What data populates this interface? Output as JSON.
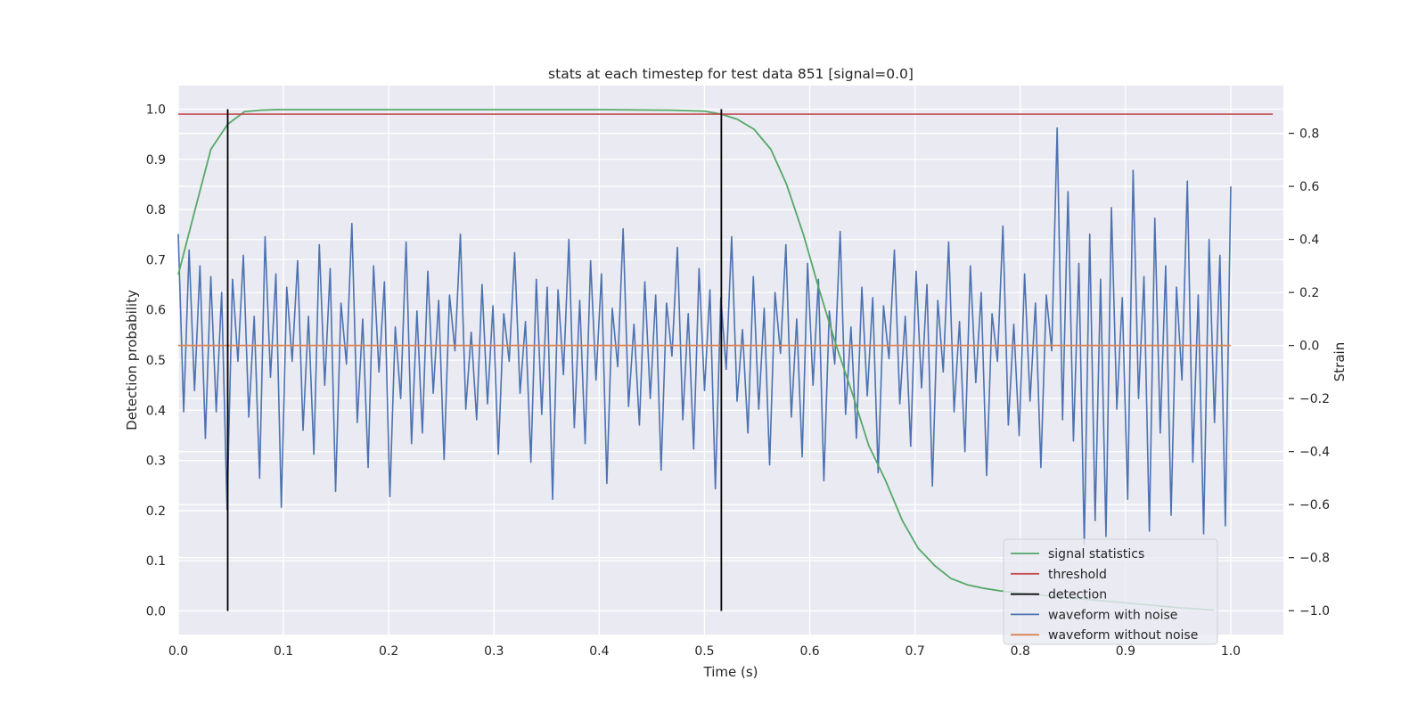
{
  "chart_data": {
    "type": "line",
    "title": "stats at each timestep for test data 851 [signal=0.0]",
    "xlabel": "Time (s)",
    "ylabel": "Detection probability",
    "y2label": "Strain",
    "xlim": [
      0.0,
      1.05
    ],
    "ylim": [
      -0.047,
      1.047
    ],
    "y2lim": [
      -1.09,
      0.98
    ],
    "xticks": [
      "0.0",
      "0.1",
      "0.2",
      "0.3",
      "0.4",
      "0.5",
      "0.6",
      "0.7",
      "0.8",
      "0.9",
      "1.0"
    ],
    "yticks": [
      "0.0",
      "0.1",
      "0.2",
      "0.3",
      "0.4",
      "0.5",
      "0.6",
      "0.7",
      "0.8",
      "0.9",
      "1.0"
    ],
    "y2ticks": [
      "−1.0",
      "−0.8",
      "−0.6",
      "−0.4",
      "−0.2",
      "0.0",
      "0.2",
      "0.4",
      "0.6",
      "0.8"
    ],
    "grid": true,
    "legend_position": "lower-right",
    "series": [
      {
        "name": "signal statistics",
        "color": "#55a868",
        "axis": "left",
        "x": [
          0.0,
          0.016,
          0.031,
          0.047,
          0.063,
          0.078,
          0.094,
          0.109,
          0.125,
          0.2,
          0.3,
          0.4,
          0.469,
          0.5,
          0.516,
          0.531,
          0.547,
          0.563,
          0.578,
          0.594,
          0.609,
          0.625,
          0.641,
          0.656,
          0.672,
          0.688,
          0.703,
          0.719,
          0.734,
          0.75,
          0.766,
          0.781,
          0.797,
          0.813,
          0.828,
          0.844,
          0.859,
          0.875,
          0.891,
          0.906,
          0.922,
          0.938,
          0.953,
          0.969,
          0.984
        ],
        "values": [
          0.67,
          0.8,
          0.92,
          0.97,
          0.995,
          0.998,
          0.999,
          0.999,
          0.999,
          0.999,
          0.999,
          0.999,
          0.998,
          0.996,
          0.99,
          0.98,
          0.96,
          0.92,
          0.85,
          0.75,
          0.64,
          0.53,
          0.43,
          0.33,
          0.26,
          0.18,
          0.125,
          0.09,
          0.065,
          0.052,
          0.045,
          0.04,
          0.036,
          0.033,
          0.03,
          0.027,
          0.024,
          0.021,
          0.018,
          0.015,
          0.012,
          0.009,
          0.006,
          0.004,
          0.002
        ]
      },
      {
        "name": "threshold",
        "color": "#c44e52",
        "axis": "left",
        "x": [
          0.0,
          1.04
        ],
        "values": [
          0.99,
          0.99
        ]
      },
      {
        "name": "detection",
        "color": "#000000",
        "axis": "left",
        "segments": [
          {
            "x": 0.047,
            "from": 0.0,
            "to": 1.0
          },
          {
            "x": 0.516,
            "from": 0.0,
            "to": 1.0
          }
        ]
      },
      {
        "name": "waveform with noise",
        "color": "#4c72b0",
        "axis": "right",
        "x_start": 0.0,
        "x_end": 1.0,
        "values": [
          0.42,
          -0.25,
          0.36,
          -0.17,
          0.3,
          -0.35,
          0.26,
          -0.25,
          0.2,
          -0.62,
          0.25,
          -0.06,
          0.34,
          -0.27,
          0.11,
          -0.5,
          0.41,
          -0.12,
          0.27,
          -0.61,
          0.22,
          -0.06,
          0.32,
          -0.32,
          0.11,
          -0.41,
          0.38,
          -0.15,
          0.29,
          -0.55,
          0.16,
          -0.07,
          0.46,
          -0.29,
          0.1,
          -0.46,
          0.3,
          -0.1,
          0.24,
          -0.57,
          0.07,
          -0.2,
          0.39,
          -0.37,
          0.13,
          -0.33,
          0.28,
          -0.18,
          0.17,
          -0.43,
          0.19,
          -0.02,
          0.42,
          -0.24,
          0.05,
          -0.28,
          0.23,
          -0.22,
          0.15,
          -0.41,
          0.12,
          -0.06,
          0.35,
          -0.18,
          0.09,
          -0.44,
          0.25,
          -0.26,
          0.22,
          -0.58,
          0.21,
          -0.11,
          0.4,
          -0.31,
          0.17,
          -0.37,
          0.32,
          -0.13,
          0.27,
          -0.52,
          0.14,
          -0.08,
          0.44,
          -0.23,
          0.08,
          -0.3,
          0.24,
          -0.2,
          0.19,
          -0.47,
          0.16,
          -0.04,
          0.37,
          -0.28,
          0.12,
          -0.39,
          0.29,
          -0.17,
          0.21,
          -0.54,
          0.18,
          -0.09,
          0.41,
          -0.21,
          0.06,
          -0.33,
          0.26,
          -0.24,
          0.14,
          -0.45,
          0.2,
          -0.03,
          0.38,
          -0.27,
          0.1,
          -0.42,
          0.31,
          -0.15,
          0.25,
          -0.51,
          0.13,
          -0.07,
          0.43,
          -0.26,
          0.07,
          -0.35,
          0.22,
          -0.19,
          0.18,
          -0.48,
          0.15,
          -0.05,
          0.36,
          -0.22,
          0.11,
          -0.38,
          0.28,
          -0.16,
          0.23,
          -0.53,
          0.17,
          -0.1,
          0.39,
          -0.25,
          0.09,
          -0.4,
          0.3,
          -0.14,
          0.2,
          -0.49,
          0.12,
          -0.06,
          0.45,
          -0.3,
          0.08,
          -0.34,
          0.27,
          -0.21,
          0.16,
          -0.46,
          0.19,
          -0.02,
          0.82,
          -0.28,
          0.58,
          -0.36,
          0.31,
          -0.75,
          0.42,
          -0.66,
          0.25,
          -0.72,
          0.52,
          -0.24,
          0.18,
          -0.58,
          0.66,
          -0.2,
          0.26,
          -0.7,
          0.48,
          -0.33,
          0.3,
          -0.64,
          0.22,
          -0.13,
          0.62,
          -0.44,
          0.19,
          -0.71,
          0.4,
          -0.29,
          0.34,
          -0.68,
          0.6
        ]
      },
      {
        "name": "waveform without noise",
        "color": "#dd8452",
        "axis": "right",
        "x": [
          0.0,
          1.0
        ],
        "values": [
          0.0,
          0.0
        ]
      }
    ]
  }
}
